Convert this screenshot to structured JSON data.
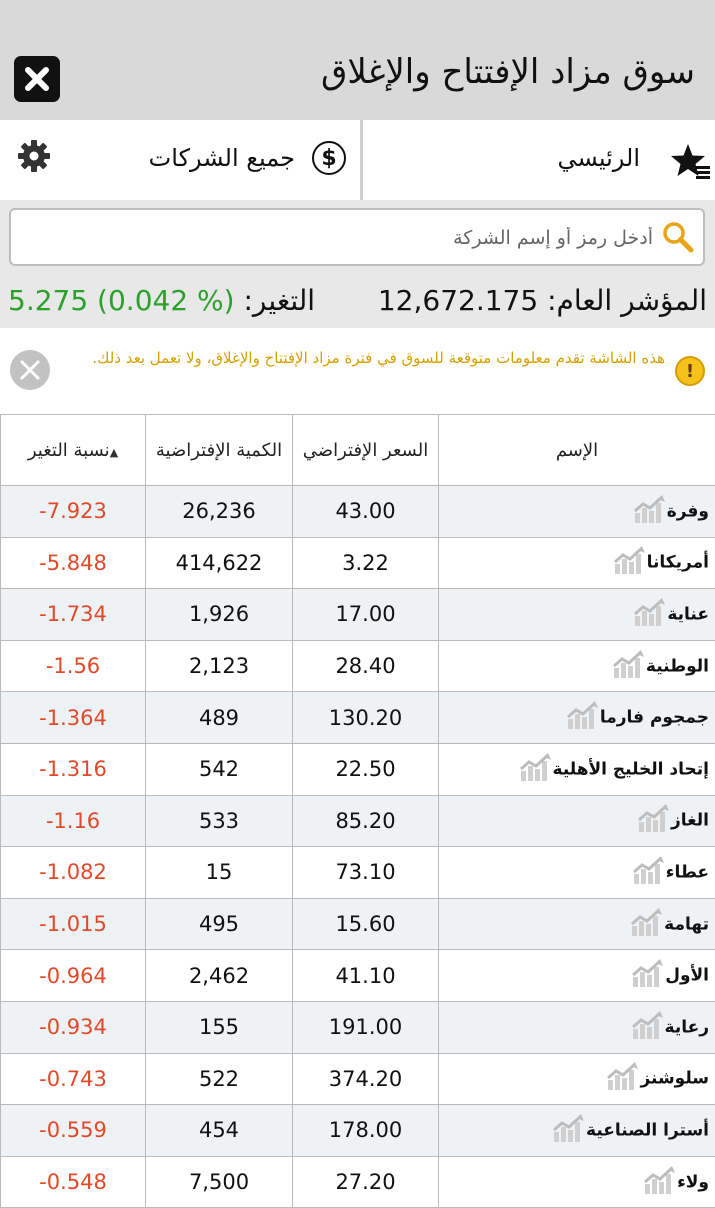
{
  "header": {
    "title": "سوق مزاد الإفتتاح والإغلاق"
  },
  "nav": {
    "main_label": "الرئيسي",
    "all_companies_label": "جميع الشركات",
    "dollar_symbol": "$"
  },
  "search": {
    "placeholder": "أدخل رمز أو إسم الشركة",
    "value": ""
  },
  "index": {
    "label": "المؤشر العام:",
    "value": "12,672.175",
    "change_label": "التغير:",
    "change_value": "5.275 (0.042 %)"
  },
  "notice": {
    "text": "هذه الشاشة تقدم معلومات متوقعة للسوق في فترة مزاد الإفتتاح والإغلاق، ولا تعمل بعد ذلك.",
    "warn_symbol": "!"
  },
  "table": {
    "headers": {
      "name": "الإسم",
      "price": "السعر الإفتراضي",
      "qty": "الكمية الإفتراضية",
      "change": "نسبة التغير",
      "sort_indicator": "▲"
    },
    "rows": [
      {
        "name": "وفرة",
        "price": "43.00",
        "qty": "26,236",
        "change": "-7.923"
      },
      {
        "name": "أمريكانا",
        "price": "3.22",
        "qty": "414,622",
        "change": "-5.848"
      },
      {
        "name": "عناية",
        "price": "17.00",
        "qty": "1,926",
        "change": "-1.734"
      },
      {
        "name": "الوطنية",
        "price": "28.40",
        "qty": "2,123",
        "change": "-1.56"
      },
      {
        "name": "جمجوم فارما",
        "price": "130.20",
        "qty": "489",
        "change": "-1.364"
      },
      {
        "name": "إتحاد الخليج الأهلية",
        "price": "22.50",
        "qty": "542",
        "change": "-1.316"
      },
      {
        "name": "الغاز",
        "price": "85.20",
        "qty": "533",
        "change": "-1.16"
      },
      {
        "name": "عطاء",
        "price": "73.10",
        "qty": "15",
        "change": "-1.082"
      },
      {
        "name": "تهامة",
        "price": "15.60",
        "qty": "495",
        "change": "-1.015"
      },
      {
        "name": "الأول",
        "price": "41.10",
        "qty": "2,462",
        "change": "-0.964"
      },
      {
        "name": "رعاية",
        "price": "191.00",
        "qty": "155",
        "change": "-0.934"
      },
      {
        "name": "سلوشنز",
        "price": "374.20",
        "qty": "522",
        "change": "-0.743"
      },
      {
        "name": "أسترا الصناعية",
        "price": "178.00",
        "qty": "454",
        "change": "-0.559"
      },
      {
        "name": "ولاء",
        "price": "27.20",
        "qty": "7,500",
        "change": "-0.548"
      }
    ]
  },
  "colors": {
    "header_bg": "#d9d9d9",
    "positive": "#2aa12a",
    "negative": "#e0492a",
    "notice": "#d6a000",
    "row_alt": "#eef2f5"
  }
}
